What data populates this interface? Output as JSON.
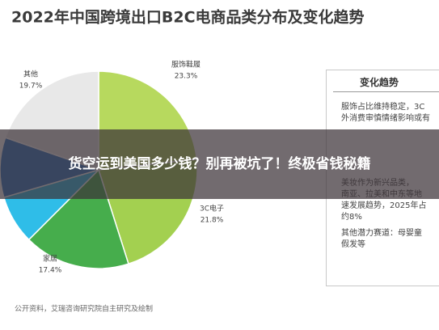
{
  "chart_data": {
    "type": "pie",
    "title": "2022年中国跨境出口B2C电商品类分布及变化趋势",
    "categories": [
      "服饰鞋履",
      "3C电子",
      "家居",
      null,
      null,
      "其他"
    ],
    "values": [
      23.3,
      21.8,
      17.4,
      8,
      9.8,
      19.7
    ],
    "value_labels": [
      "23.3%",
      "21.8%",
      "17.4%",
      null,
      null,
      "19.7%"
    ],
    "colors": [
      "#b7d95e",
      "#a3d050",
      "#46ad4c",
      "#2fbde8",
      "#2f78c4",
      "#e8e8e8"
    ],
    "source": "公开资料，艾瑞咨询研究院自主研究及绘制"
  },
  "panel": {
    "title": "变化趋势",
    "lines": [
      "服饰占比维持稳定，3C",
      "外消费审慎情绪影响或有",
      "美妆作为新兴品类，",
      "南亚、拉美和中东等地",
      "速发展趋势，2025年占",
      "约8%",
      "其他潜力赛道：母婴童",
      "假发等"
    ]
  },
  "overlay": {
    "text": "货空运到美国多少钱？别再被坑了！终极省钱秘籍"
  }
}
